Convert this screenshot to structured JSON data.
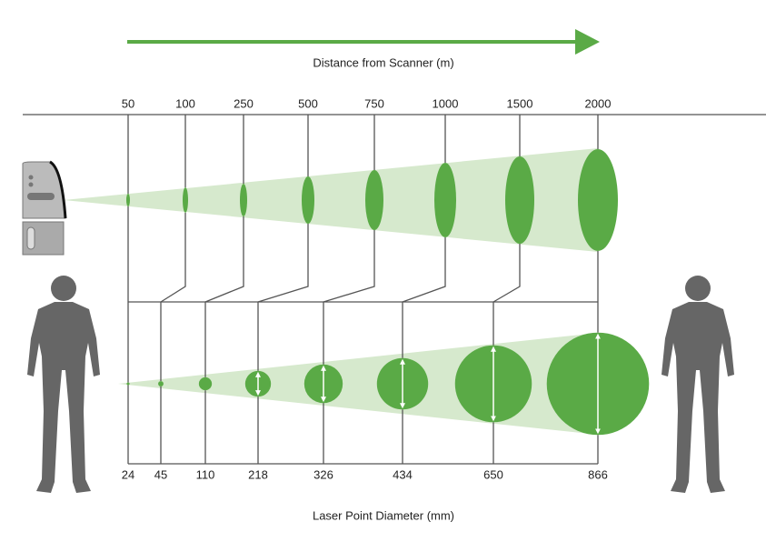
{
  "top_label": "Distance from Scanner (m)",
  "distances": [
    50,
    100,
    250,
    500,
    750,
    1000,
    1500,
    2000
  ],
  "bottom_label": "Laser Point Diameter (mm)",
  "diameters": [
    24,
    45,
    110,
    218,
    326,
    434,
    650,
    866
  ]
}
